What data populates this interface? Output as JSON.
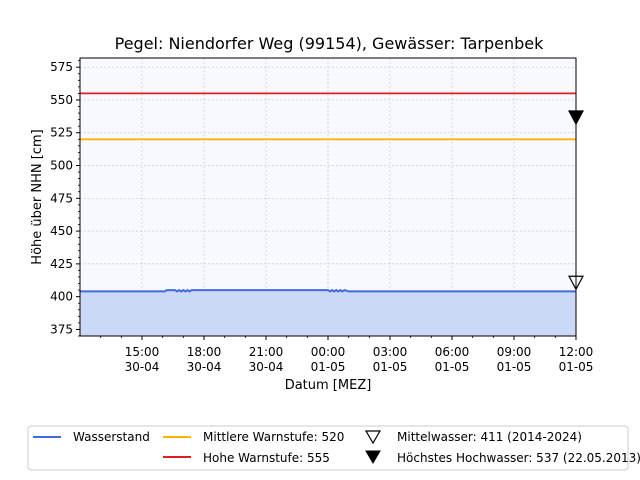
{
  "chart_data": {
    "type": "line",
    "title": "Pegel:  Niendorfer Weg (99154), Gewässer:  Tarpenbek",
    "xlabel": "Datum [MEZ]",
    "ylabel": "Höhe über NHN [cm]",
    "ylim": [
      370,
      582
    ],
    "xlim_hours": [
      0,
      24
    ],
    "grid": true,
    "y_ticks": [
      375,
      400,
      425,
      450,
      475,
      500,
      525,
      550,
      575
    ],
    "x_ticks": [
      {
        "h": 3,
        "time": "15:00",
        "date": "30-04"
      },
      {
        "h": 6,
        "time": "18:00",
        "date": "30-04"
      },
      {
        "h": 9,
        "time": "21:00",
        "date": "30-04"
      },
      {
        "h": 12,
        "time": "00:00",
        "date": "01-05"
      },
      {
        "h": 15,
        "time": "03:00",
        "date": "01-05"
      },
      {
        "h": 18,
        "time": "06:00",
        "date": "01-05"
      },
      {
        "h": 21,
        "time": "09:00",
        "date": "01-05"
      },
      {
        "h": 24,
        "time": "12:00",
        "date": "01-05"
      }
    ],
    "series": [
      {
        "name": "Wasserstand",
        "color": "#4169e1",
        "fill": "#cbd9f6",
        "x": [
          0,
          4.1,
          4.2,
          4.6,
          4.7,
          4.8,
          4.9,
          5.0,
          5.1,
          5.2,
          5.3,
          5.4,
          5.5,
          12.0,
          12.1,
          12.2,
          12.3,
          12.4,
          12.5,
          12.6,
          12.7,
          12.8,
          13.0,
          24
        ],
        "y": [
          404,
          404,
          405,
          405,
          404,
          405,
          404,
          405,
          404,
          405,
          404,
          405,
          405,
          405,
          404,
          405,
          404,
          405,
          404,
          405,
          404,
          405,
          404,
          404
        ]
      }
    ],
    "thresholds": [
      {
        "name": "Mittlere Warnstufe: 520",
        "value": 520,
        "color": "#ffb400"
      },
      {
        "name": "Hohe Warnstufe: 555",
        "value": 555,
        "color": "#dc2020"
      }
    ],
    "markers": [
      {
        "name": "Mittelwasser: 411 (2014-2024)",
        "value": 411,
        "symbol": "open-triangle-down"
      },
      {
        "name": "Höchstes Hochwasser: 537 (22.05.2013)",
        "value": 537,
        "symbol": "filled-triangle-down"
      }
    ],
    "legend_position": "bottom"
  }
}
